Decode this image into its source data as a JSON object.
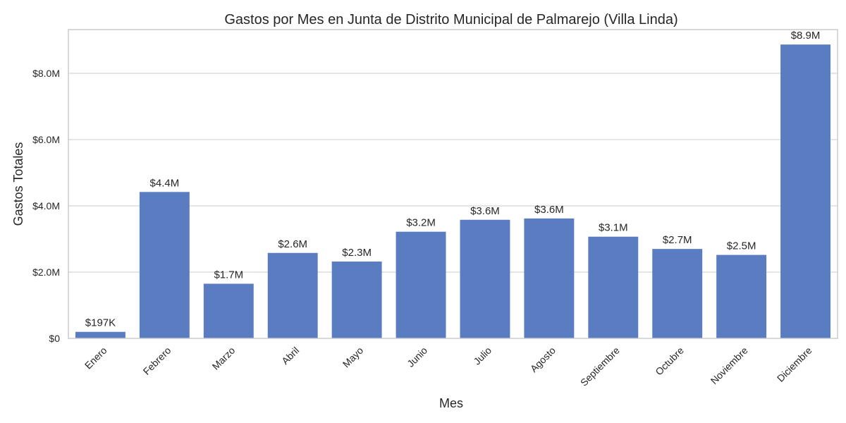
{
  "chart_data": {
    "type": "bar",
    "title": "Gastos por Mes en Junta de Distrito Municipal de Palmarejo (Villa Linda)",
    "xlabel": "Mes",
    "ylabel": "Gastos Totales",
    "categories": [
      "Enero",
      "Febrero",
      "Marzo",
      "Abril",
      "Mayo",
      "Junio",
      "Julio",
      "Agosto",
      "Septiembre",
      "Octubre",
      "Noviembre",
      "Diciembre"
    ],
    "values": [
      197000,
      4420000,
      1650000,
      2580000,
      2320000,
      3220000,
      3580000,
      3620000,
      3070000,
      2700000,
      2520000,
      8870000
    ],
    "data_labels": [
      "$197K",
      "$4.4M",
      "$1.7M",
      "$2.6M",
      "$2.3M",
      "$3.2M",
      "$3.6M",
      "$3.6M",
      "$3.1M",
      "$2.7M",
      "$2.5M",
      "$8.9M"
    ],
    "yticks": [
      0,
      2000000,
      4000000,
      6000000,
      8000000
    ],
    "ytick_labels": [
      "$0",
      "$2.0M",
      "$4.0M",
      "$6.0M",
      "$8.0M"
    ],
    "ylim": [
      0,
      9320000
    ],
    "grid": "horizontal",
    "bar_color": "#5a7dc2",
    "grid_color": "#d5d5d5",
    "spine_color": "#cccccc",
    "text_color": "#262626"
  }
}
